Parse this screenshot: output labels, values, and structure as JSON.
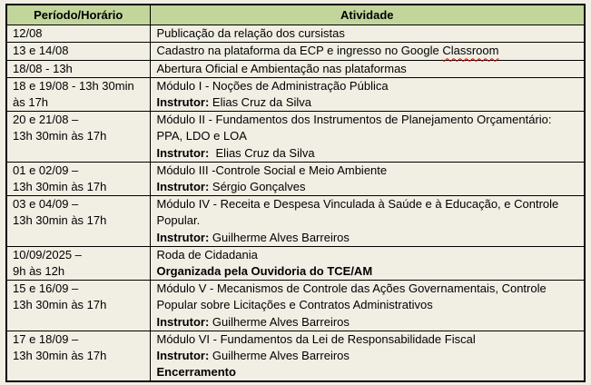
{
  "colors": {
    "page_bg": "#f1eee4",
    "header_bg": "#c2d69c",
    "border": "#000000",
    "text": "#000000",
    "spellcheck_underline": "#e00000"
  },
  "table": {
    "headers": {
      "period": "Período/Horário",
      "activity": "Atividade"
    },
    "rows": [
      {
        "period": [
          "12/08"
        ],
        "activity": [
          [
            {
              "t": "Publicação da relação dos cursistas"
            }
          ]
        ]
      },
      {
        "period": [
          "13 e 14/08"
        ],
        "activity": [
          [
            {
              "t": "Cadastro na plataforma da ECP e ingresso no Google "
            },
            {
              "t": "Classroom",
              "wavy": true
            }
          ]
        ]
      },
      {
        "period": [
          "18/08 - 13h"
        ],
        "activity": [
          [
            {
              "t": "Abertura Oficial e Ambientação nas plataformas"
            }
          ]
        ]
      },
      {
        "period": [
          "18 e 19/08 - 13h 30min",
          "às 17h"
        ],
        "activity": [
          [
            {
              "t": "Módulo I - Noções de Administração Pública"
            }
          ],
          [
            {
              "t": "Instrutor:",
              "b": true
            },
            {
              "t": " Elias Cruz da Silva"
            }
          ]
        ]
      },
      {
        "period": [
          "20 e 21/08 –",
          "13h 30min às 17h"
        ],
        "activity": [
          [
            {
              "t": "Módulo II - Fundamentos dos Instrumentos de Planejamento Orçamentário:"
            }
          ],
          [
            {
              "t": "PPA, LDO e LOA"
            }
          ],
          [
            {
              "t": "Instrutor:",
              "b": true
            },
            {
              "t": "  Elias Cruz da Silva"
            }
          ]
        ]
      },
      {
        "period": [
          "01 e 02/09 –",
          "13h 30min às 17h"
        ],
        "activity": [
          [
            {
              "t": "Módulo III -Controle Social e Meio Ambiente"
            }
          ],
          [
            {
              "t": "Instrutor:",
              "b": true
            },
            {
              "t": " Sérgio Gonçalves"
            }
          ]
        ]
      },
      {
        "period": [
          "03 e 04/09 –",
          "13h 30min às 17h"
        ],
        "activity": [
          [
            {
              "t": "Módulo IV - Receita e Despesa Vinculada à Saúde e à Educação, e Controle"
            }
          ],
          [
            {
              "t": "Popular."
            }
          ],
          [
            {
              "t": "Instrutor:",
              "b": true
            },
            {
              "t": " Guilherme Alves Barreiros"
            }
          ]
        ]
      },
      {
        "period": [
          "10/09/2025 –",
          "9h às 12h"
        ],
        "activity": [
          [
            {
              "t": "Roda de Cidadania"
            }
          ],
          [
            {
              "t": "Organizada pela Ouvidoria do TCE/AM",
              "b": true
            }
          ]
        ]
      },
      {
        "period": [
          "15 e 16/09 –",
          "13h 30min às 17h"
        ],
        "activity": [
          [
            {
              "t": "Módulo V - Mecanismos de Controle das Ações Governamentais, Controle"
            }
          ],
          [
            {
              "t": "Popular sobre Licitações e Contratos Administrativos"
            }
          ],
          [
            {
              "t": "Instrutor:",
              "b": true
            },
            {
              "t": " Guilherme Alves Barreiros"
            }
          ]
        ]
      },
      {
        "period": [
          "17 e 18/09 –",
          "13h 30min às 17h"
        ],
        "activity": [
          [
            {
              "t": "Módulo VI - Fundamentos da Lei de Responsabilidade Fiscal"
            }
          ],
          [
            {
              "t": "Instrutor:",
              "b": true
            },
            {
              "t": " Guilherme Alves Barreiros"
            }
          ],
          [
            {
              "t": "Encerramento",
              "b": true
            }
          ]
        ]
      }
    ]
  }
}
